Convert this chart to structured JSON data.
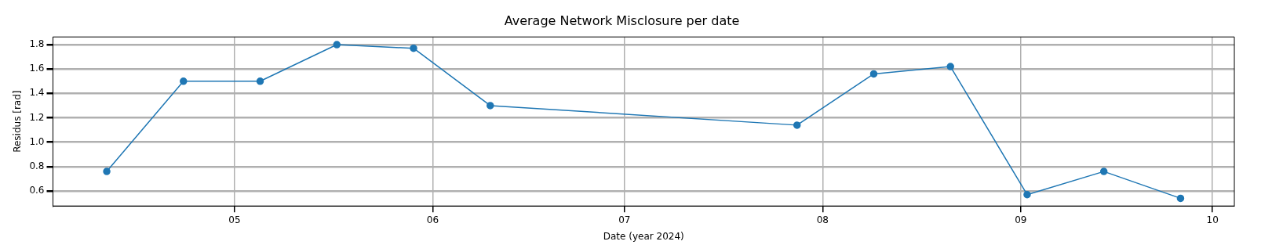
{
  "chart_data": {
    "type": "line",
    "title": "Average Network Misclosure per date",
    "xlabel": "Date (year 2024)",
    "ylabel": "Residus [rad]",
    "x": [
      "2024-04-11",
      "2024-04-23",
      "2024-05-05",
      "2024-05-17",
      "2024-05-29",
      "2024-06-10",
      "2024-07-28",
      "2024-08-09",
      "2024-08-21",
      "2024-09-02",
      "2024-09-14",
      "2024-09-26"
    ],
    "series": [
      {
        "color": "#1f77b4",
        "values": [
          0.76,
          1.5,
          1.5,
          1.8,
          1.77,
          1.3,
          1.14,
          1.56,
          1.62,
          0.57,
          0.76,
          0.54
        ]
      }
    ],
    "xlim": [
      "2024-04-02T14:00",
      "2024-10-04T10:00"
    ],
    "xticks": [
      {
        "value": "2024-05-01",
        "label": "05"
      },
      {
        "value": "2024-06-01",
        "label": "06"
      },
      {
        "value": "2024-07-01",
        "label": "07"
      },
      {
        "value": "2024-08-01",
        "label": "08"
      },
      {
        "value": "2024-09-01",
        "label": "09"
      },
      {
        "value": "2024-10-01",
        "label": "10"
      }
    ],
    "ylim": [
      0.477,
      1.863
    ],
    "yticks": [
      0.6,
      0.8,
      {
        "value": 1,
        "label": "1.0"
      },
      1.2,
      1.4,
      1.6,
      1.8
    ],
    "grid": true,
    "marker": "circle",
    "line_style": "solid",
    "legend": false
  }
}
